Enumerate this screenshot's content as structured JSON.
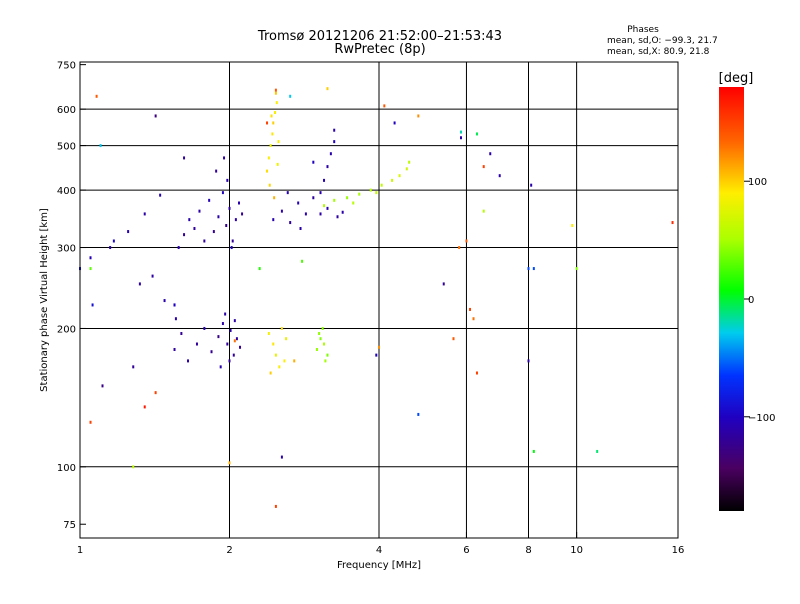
{
  "chart_data": {
    "type": "scatter",
    "title": "Tromsø 20121206 21:52:00–21:53:43",
    "subtitle": "RwPretec (8p)",
    "xlabel": "Frequency [MHz]",
    "ylabel": "Stationary phase Virtual Height [km]",
    "x_scale": "log",
    "y_scale": "log",
    "xlim": [
      1,
      16
    ],
    "ylim": [
      70,
      760
    ],
    "x_ticks": [
      1,
      2,
      4,
      6,
      8,
      10,
      16
    ],
    "x_tick_labels": [
      "1",
      "2",
      "4",
      "6",
      "8",
      "10",
      "16"
    ],
    "x_gridlines": [
      2,
      4,
      6,
      8,
      10
    ],
    "y_ticks": [
      75,
      100,
      200,
      300,
      400,
      500,
      600,
      750
    ],
    "y_tick_labels": [
      "75",
      "100",
      "200",
      "300",
      "400",
      "500",
      "600",
      "750"
    ],
    "y_gridlines": [
      100,
      200,
      300,
      400,
      500,
      600
    ],
    "grid": true,
    "info": {
      "heading": "Phases",
      "line1": "mean, sd,O: −99.3, 21.7",
      "line2": "mean, sd,X:  80.9, 21.8"
    },
    "colorbar": {
      "label": "[deg]",
      "range": [
        -180,
        180
      ],
      "ticks": [
        100,
        0,
        -100
      ],
      "tick_labels": [
        "100",
        "0",
        "−100"
      ]
    },
    "series": [
      {
        "points": [
          [
            1.58,
            300,
            -110
          ],
          [
            1.62,
            320,
            -120
          ],
          [
            1.66,
            345,
            -108
          ],
          [
            1.7,
            330,
            -115
          ],
          [
            1.74,
            360,
            -112
          ],
          [
            1.78,
            310,
            -118
          ],
          [
            1.82,
            380,
            -105
          ],
          [
            1.86,
            325,
            -122
          ],
          [
            1.9,
            350,
            -110
          ],
          [
            1.94,
            395,
            -100
          ],
          [
            1.97,
            335,
            -125
          ],
          [
            2.0,
            365,
            -115
          ],
          [
            2.03,
            310,
            -118
          ],
          [
            2.06,
            345,
            -112
          ],
          [
            2.09,
            375,
            -108
          ],
          [
            2.12,
            355,
            -120
          ],
          [
            1.98,
            420,
            -110
          ],
          [
            2.02,
            300,
            -100
          ],
          [
            1.95,
            470,
            -112
          ],
          [
            1.88,
            440,
            -118
          ],
          [
            1.55,
            180,
            -115
          ],
          [
            1.6,
            195,
            -120
          ],
          [
            1.65,
            170,
            -112
          ],
          [
            1.72,
            185,
            -118
          ],
          [
            1.78,
            200,
            -108
          ],
          [
            1.84,
            178,
            -122
          ],
          [
            1.9,
            192,
            -125
          ],
          [
            1.94,
            205,
            -110
          ],
          [
            1.98,
            185,
            -118
          ],
          [
            2.01,
            198,
            -112
          ],
          [
            2.04,
            175,
            -120
          ],
          [
            2.07,
            190,
            -115
          ],
          [
            2.1,
            182,
            -122
          ],
          [
            1.96,
            215,
            -110
          ],
          [
            2.0,
            170,
            -118
          ],
          [
            1.56,
            210,
            -110
          ],
          [
            1.92,
            165,
            -108
          ],
          [
            2.05,
            208,
            -112
          ],
          [
            2.45,
            345,
            -108
          ],
          [
            2.55,
            360,
            -112
          ],
          [
            2.65,
            340,
            -118
          ],
          [
            2.75,
            375,
            -105
          ],
          [
            2.85,
            355,
            -110
          ],
          [
            2.95,
            385,
            -115
          ],
          [
            2.78,
            330,
            -110
          ],
          [
            2.62,
            395,
            -108
          ],
          [
            3.05,
            395,
            -110
          ],
          [
            3.1,
            420,
            -105
          ],
          [
            3.15,
            450,
            -112
          ],
          [
            3.2,
            480,
            -108
          ],
          [
            3.25,
            510,
            -100
          ],
          [
            3.05,
            355,
            -112
          ],
          [
            3.15,
            365,
            -108
          ],
          [
            3.3,
            350,
            -115
          ],
          [
            3.38,
            358,
            -110
          ],
          [
            3.25,
            540,
            -110
          ],
          [
            1.62,
            470,
            -115
          ],
          [
            1.05,
            285,
            -105
          ],
          [
            1.15,
            300,
            -110
          ],
          [
            1.25,
            325,
            -108
          ],
          [
            1.35,
            355,
            -112
          ],
          [
            1.45,
            390,
            -108
          ],
          [
            1.32,
            250,
            -112
          ],
          [
            1.48,
            230,
            -108
          ],
          [
            1.4,
            260,
            -112
          ]
        ]
      },
      {
        "points": [
          [
            2.38,
            440,
            95
          ],
          [
            2.4,
            470,
            88
          ],
          [
            2.42,
            500,
            80
          ],
          [
            2.44,
            530,
            92
          ],
          [
            2.45,
            560,
            100
          ],
          [
            2.47,
            590,
            85
          ],
          [
            2.49,
            620,
            90
          ],
          [
            2.41,
            410,
            98
          ],
          [
            2.46,
            385,
            110
          ],
          [
            2.5,
            455,
            82
          ],
          [
            2.48,
            650,
            102
          ],
          [
            2.43,
            580,
            94
          ],
          [
            2.51,
            510,
            86
          ],
          [
            2.4,
            195,
            85
          ],
          [
            2.45,
            185,
            92
          ],
          [
            2.48,
            175,
            78
          ],
          [
            2.52,
            165,
            88
          ],
          [
            2.55,
            200,
            95
          ],
          [
            2.6,
            190,
            80
          ],
          [
            2.42,
            160,
            100
          ],
          [
            2.58,
            170,
            90
          ],
          [
            3.0,
            180,
            45
          ],
          [
            3.05,
            190,
            40
          ],
          [
            3.1,
            185,
            50
          ],
          [
            3.15,
            175,
            38
          ],
          [
            3.08,
            200,
            42
          ],
          [
            3.12,
            170,
            48
          ],
          [
            3.03,
            195,
            44
          ],
          [
            3.1,
            370,
            52
          ],
          [
            3.25,
            380,
            48
          ],
          [
            3.45,
            385,
            45
          ],
          [
            3.65,
            392,
            50
          ],
          [
            3.85,
            400,
            55
          ],
          [
            4.05,
            410,
            60
          ],
          [
            4.25,
            420,
            65
          ],
          [
            4.4,
            430,
            72
          ],
          [
            4.55,
            445,
            68
          ],
          [
            4.6,
            460,
            58
          ],
          [
            3.55,
            375,
            55
          ],
          [
            3.95,
            395,
            62
          ],
          [
            2.8,
            280,
            25
          ],
          [
            2.3,
            270,
            15
          ],
          [
            6.3,
            530,
            -5
          ],
          [
            4.8,
            580,
            120
          ],
          [
            9.8,
            335,
            90
          ],
          [
            11.0,
            108,
            -10
          ],
          [
            8.2,
            108,
            5
          ],
          [
            5.85,
            535,
            -20
          ],
          [
            6.5,
            360,
            55
          ],
          [
            10.0,
            270,
            40
          ],
          [
            1.05,
            270,
            30
          ],
          [
            1.28,
            100,
            60
          ],
          [
            2.0,
            102,
            110
          ],
          [
            2.7,
            170,
            110
          ]
        ]
      },
      {
        "points": [
          [
            1.0,
            270,
            -85
          ],
          [
            1.06,
            225,
            -90
          ],
          [
            1.1,
            500,
            -30
          ],
          [
            1.11,
            150,
            -125
          ],
          [
            1.17,
            310,
            -95
          ],
          [
            1.28,
            165,
            -118
          ],
          [
            1.42,
            580,
            -130
          ],
          [
            1.55,
            225,
            -110
          ],
          [
            2.48,
            660,
            140
          ],
          [
            2.48,
            82,
            150
          ],
          [
            2.55,
            105,
            -110
          ],
          [
            2.65,
            640,
            -30
          ],
          [
            2.95,
            460,
            -100
          ],
          [
            3.15,
            665,
            100
          ],
          [
            4.1,
            610,
            140
          ],
          [
            3.95,
            175,
            -100
          ],
          [
            4.0,
            182,
            120
          ],
          [
            4.3,
            560,
            -100
          ],
          [
            4.8,
            130,
            -60
          ],
          [
            5.4,
            250,
            -120
          ],
          [
            5.8,
            300,
            130
          ],
          [
            5.85,
            520,
            -110
          ],
          [
            6.1,
            220,
            150
          ],
          [
            6.2,
            210,
            130
          ],
          [
            6.3,
            160,
            150
          ],
          [
            6.5,
            450,
            150
          ],
          [
            7.0,
            430,
            -110
          ],
          [
            8.0,
            270,
            -60
          ],
          [
            8.0,
            170,
            -110
          ],
          [
            8.1,
            410,
            -110
          ],
          [
            8.2,
            270,
            -60
          ],
          [
            6.0,
            310,
            140
          ],
          [
            1.08,
            640,
            140
          ],
          [
            1.05,
            125,
            150
          ],
          [
            1.35,
            135,
            170
          ],
          [
            1.42,
            145,
            150
          ],
          [
            2.05,
            188,
            130
          ],
          [
            15.6,
            340,
            160
          ],
          [
            5.65,
            190,
            140
          ],
          [
            1.55,
            225,
            -100
          ],
          [
            2.38,
            560,
            150
          ],
          [
            6.7,
            480,
            -110
          ]
        ]
      }
    ]
  }
}
